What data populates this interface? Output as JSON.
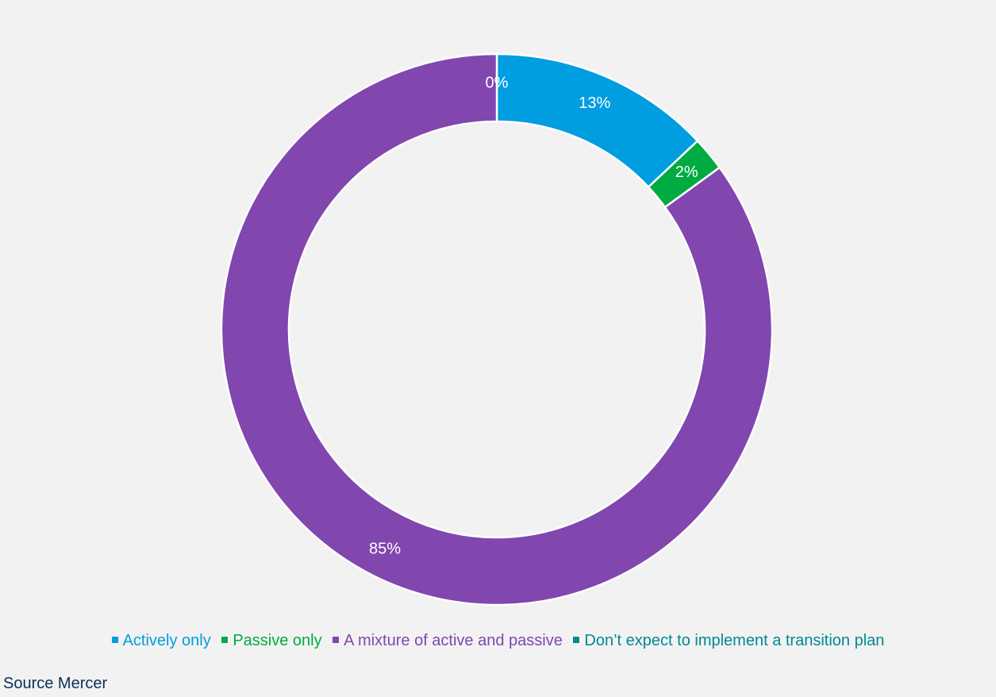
{
  "chart_data": {
    "type": "pie",
    "title": "",
    "categories": [
      "Actively only",
      "Passive only",
      "A mixture of active and passive",
      "Don’t expect to implement a transition plan"
    ],
    "values": [
      13,
      2,
      85,
      0
    ],
    "data_labels": [
      "13%",
      "2%",
      "85%",
      "0%"
    ],
    "colors": [
      "#009de0",
      "#00ac41",
      "#8246af",
      "#008895"
    ],
    "legend_placement": "bottom",
    "donut": true
  },
  "source": "Source Mercer"
}
